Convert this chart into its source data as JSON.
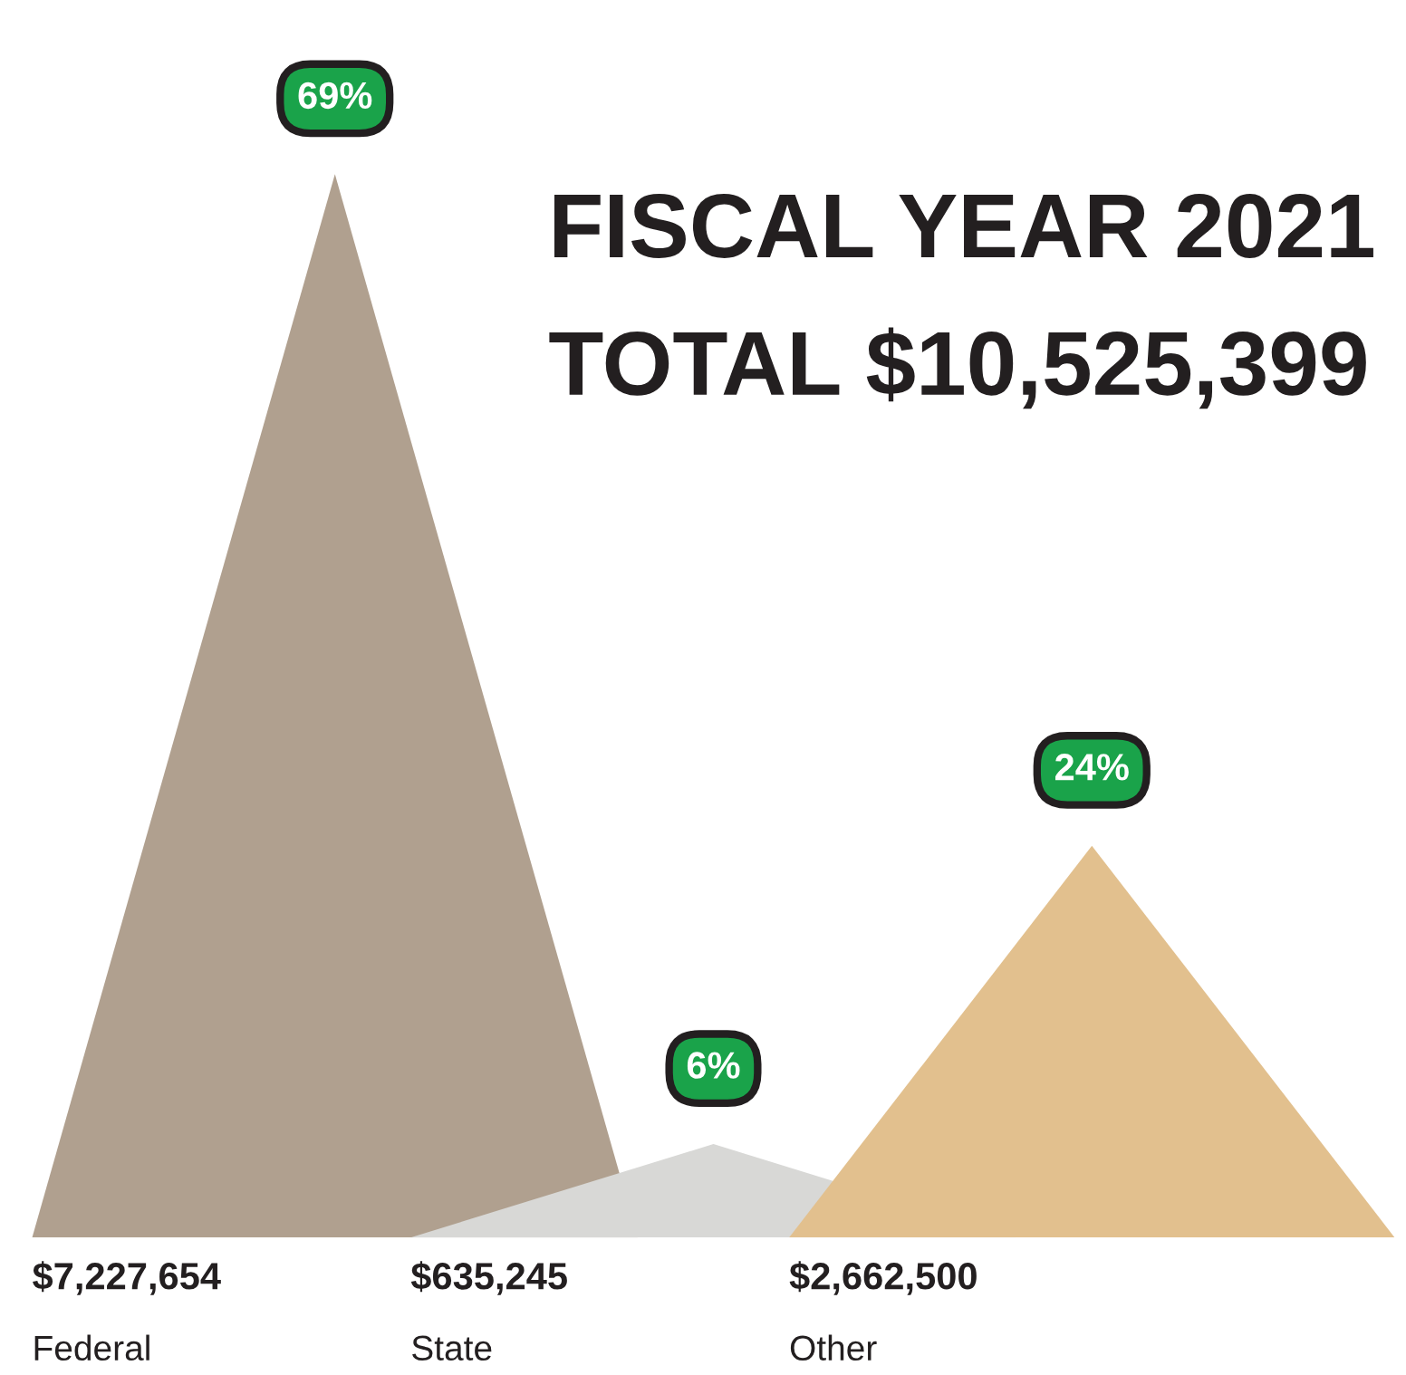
{
  "chart_data": {
    "type": "other",
    "title": "FISCAL YEAR 2021",
    "subtitle": "TOTAL $10,525,399",
    "categories": [
      "Federal",
      "State",
      "Other"
    ],
    "values": [
      7227654,
      635245,
      2662500
    ],
    "colors": [
      "#b0a08f",
      "#d8d8d6",
      "#e2c08e"
    ],
    "value_labels": [
      "$7,227,654",
      "$635,245",
      "$2,662,500"
    ],
    "annotations": [
      "69%",
      "6%",
      "24%"
    ]
  }
}
